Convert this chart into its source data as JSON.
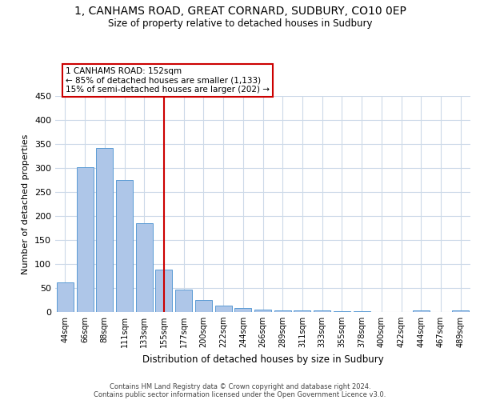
{
  "title1": "1, CANHAMS ROAD, GREAT CORNARD, SUDBURY, CO10 0EP",
  "title2": "Size of property relative to detached houses in Sudbury",
  "xlabel": "Distribution of detached houses by size in Sudbury",
  "ylabel": "Number of detached properties",
  "categories": [
    "44sqm",
    "66sqm",
    "88sqm",
    "111sqm",
    "133sqm",
    "155sqm",
    "177sqm",
    "200sqm",
    "222sqm",
    "244sqm",
    "266sqm",
    "289sqm",
    "311sqm",
    "333sqm",
    "355sqm",
    "378sqm",
    "400sqm",
    "422sqm",
    "444sqm",
    "467sqm",
    "489sqm"
  ],
  "values": [
    62,
    301,
    341,
    275,
    185,
    88,
    46,
    25,
    13,
    8,
    5,
    4,
    3,
    3,
    2,
    2,
    0,
    0,
    3,
    0,
    3
  ],
  "bar_color": "#aec6e8",
  "bar_edge_color": "#5b9bd5",
  "vline_bin_index": 5,
  "annotation_title": "1 CANHAMS ROAD: 152sqm",
  "annotation_line1": "← 85% of detached houses are smaller (1,133)",
  "annotation_line2": "15% of semi-detached houses are larger (202) →",
  "annotation_box_color": "#cc0000",
  "ylim": [
    0,
    450
  ],
  "yticks": [
    0,
    50,
    100,
    150,
    200,
    250,
    300,
    350,
    400,
    450
  ],
  "footer1": "Contains HM Land Registry data © Crown copyright and database right 2024.",
  "footer2": "Contains public sector information licensed under the Open Government Licence v3.0.",
  "background_color": "#ffffff",
  "grid_color": "#ccd9e8"
}
